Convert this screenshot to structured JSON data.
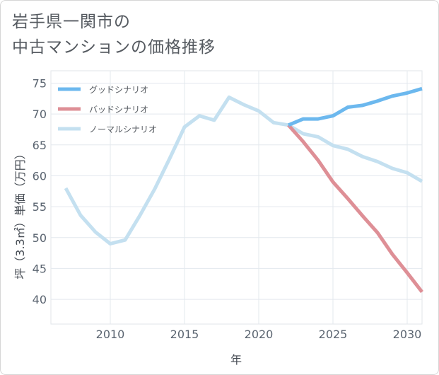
{
  "title_lines": [
    "岩手県一関市の",
    "中古マンションの価格推移"
  ],
  "chart_data": {
    "type": "line",
    "title": "岩手県一関市の中古マンションの価格推移",
    "xlabel": "年",
    "ylabel": "坪（3.3㎡）単価（万円）",
    "xlim": [
      2006,
      2031
    ],
    "ylim": [
      36,
      77
    ],
    "xticks": [
      2010,
      2015,
      2020,
      2025,
      2030
    ],
    "yticks": [
      40,
      45,
      50,
      55,
      60,
      65,
      70,
      75
    ],
    "grid": true,
    "legend_position": "top-left",
    "series": [
      {
        "name": "グッドシナリオ",
        "color": "#6cb8ee",
        "x": [
          2022,
          2023,
          2024,
          2025,
          2026,
          2027,
          2028,
          2029,
          2030,
          2031
        ],
        "y": [
          68.2,
          69.2,
          69.2,
          69.7,
          71.1,
          71.4,
          72.1,
          72.9,
          73.4,
          74.1
        ]
      },
      {
        "name": "バッドシナリオ",
        "color": "#de8f96",
        "x": [
          2022,
          2023,
          2024,
          2025,
          2026,
          2027,
          2028,
          2029,
          2030,
          2031
        ],
        "y": [
          68.2,
          65.5,
          62.5,
          59.0,
          56.3,
          53.5,
          50.8,
          47.3,
          44.3,
          41.2
        ]
      },
      {
        "name": "ノーマルシナリオ",
        "color": "#c4e0f0",
        "x": [
          2007,
          2008,
          2009,
          2010,
          2011,
          2012,
          2013,
          2014,
          2015,
          2016,
          2017,
          2018,
          2019,
          2020,
          2021,
          2022,
          2023,
          2024,
          2025,
          2026,
          2027,
          2028,
          2029,
          2030,
          2031
        ],
        "y": [
          58.0,
          53.6,
          50.9,
          49.0,
          49.6,
          53.6,
          57.9,
          62.8,
          67.9,
          69.7,
          69.0,
          72.7,
          71.5,
          70.5,
          68.6,
          68.2,
          66.8,
          66.3,
          64.9,
          64.3,
          63.1,
          62.3,
          61.2,
          60.5,
          59.1
        ]
      }
    ]
  }
}
